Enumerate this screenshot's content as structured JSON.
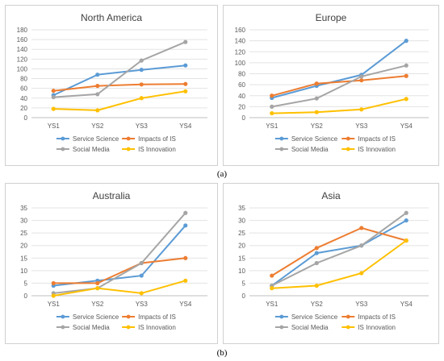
{
  "figure": {
    "caption_a": "(a)",
    "caption_b": "(b)"
  },
  "series_styles": [
    {
      "name": "Service Science",
      "color": "#5b9bd5"
    },
    {
      "name": "Impacts of IS",
      "color": "#ed7d31"
    },
    {
      "name": "Social Media",
      "color": "#a5a5a5"
    },
    {
      "name": "IS Innovation",
      "color": "#ffc000"
    }
  ],
  "chart_data": [
    {
      "type": "line",
      "title": "North America",
      "categories": [
        "YS1",
        "YS2",
        "YS3",
        "YS4"
      ],
      "ylim": [
        0,
        180
      ],
      "yticks": [
        0,
        20,
        40,
        60,
        80,
        100,
        120,
        140,
        160,
        180
      ],
      "grid": true,
      "legend": "bottom",
      "series": [
        {
          "name": "Service Science",
          "values": [
            46,
            88,
            98,
            107
          ]
        },
        {
          "name": "Impacts of IS",
          "values": [
            55,
            65,
            68,
            69
          ]
        },
        {
          "name": "Social Media",
          "values": [
            42,
            48,
            117,
            155
          ]
        },
        {
          "name": "IS Innovation",
          "values": [
            18,
            15,
            40,
            54
          ]
        }
      ]
    },
    {
      "type": "line",
      "title": "Europe",
      "categories": [
        "YS1",
        "YS2",
        "YS3",
        "YS4"
      ],
      "ylim": [
        0,
        160
      ],
      "yticks": [
        0,
        20,
        40,
        60,
        80,
        100,
        120,
        140,
        160
      ],
      "grid": true,
      "legend": "bottom",
      "series": [
        {
          "name": "Service Science",
          "values": [
            36,
            58,
            78,
            140
          ]
        },
        {
          "name": "Impacts of IS",
          "values": [
            40,
            62,
            68,
            76
          ]
        },
        {
          "name": "Social Media",
          "values": [
            20,
            35,
            75,
            95
          ]
        },
        {
          "name": "IS Innovation",
          "values": [
            8,
            10,
            15,
            34
          ]
        }
      ]
    },
    {
      "type": "line",
      "title": "Australia",
      "categories": [
        "YS1",
        "YS2",
        "YS3",
        "YS4"
      ],
      "ylim": [
        0,
        35
      ],
      "yticks": [
        0,
        5,
        10,
        15,
        20,
        25,
        30,
        35
      ],
      "grid": true,
      "legend": "bottom",
      "series": [
        {
          "name": "Service Science",
          "values": [
            4,
            6,
            8,
            28
          ]
        },
        {
          "name": "Impacts of IS",
          "values": [
            5,
            5,
            13,
            15
          ]
        },
        {
          "name": "Social Media",
          "values": [
            1,
            3,
            13,
            33
          ]
        },
        {
          "name": "IS Innovation",
          "values": [
            0,
            3,
            1,
            6
          ]
        }
      ]
    },
    {
      "type": "line",
      "title": "Asia",
      "categories": [
        "YS1",
        "YS2",
        "YS3",
        "YS4"
      ],
      "ylim": [
        0,
        35
      ],
      "yticks": [
        0,
        5,
        10,
        15,
        20,
        25,
        30,
        35
      ],
      "grid": true,
      "legend": "bottom",
      "series": [
        {
          "name": "Service Science",
          "values": [
            4,
            17,
            20,
            30
          ]
        },
        {
          "name": "Impacts of IS",
          "values": [
            8,
            19,
            27,
            22
          ]
        },
        {
          "name": "Social Media",
          "values": [
            4,
            13,
            20,
            33
          ]
        },
        {
          "name": "IS Innovation",
          "values": [
            3,
            4,
            9,
            22
          ]
        }
      ]
    }
  ]
}
